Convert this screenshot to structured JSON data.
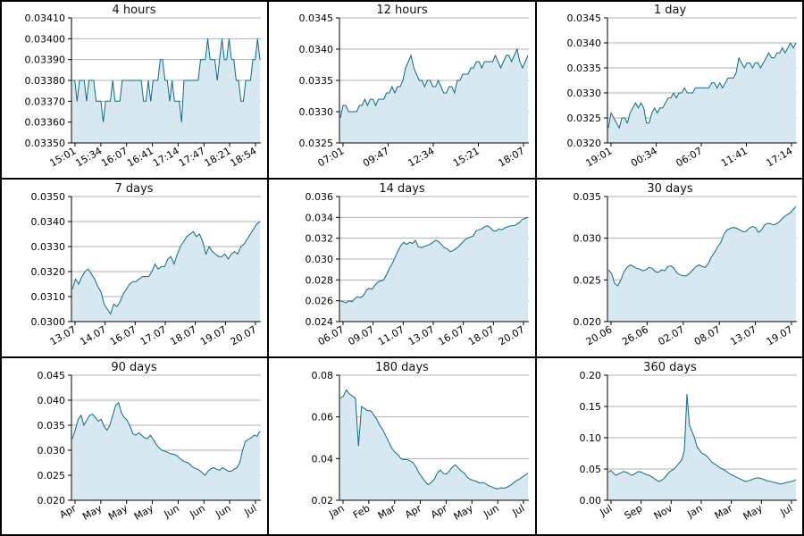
{
  "colors": {
    "line": "#0b6b8a",
    "fill": "#d7e8f0",
    "grid": "#b0b0b0",
    "border": "#000000"
  },
  "chart_data": [
    {
      "type": "area",
      "title": "4 hours",
      "yticks": [
        "0.03350",
        "0.03360",
        "0.03370",
        "0.03380",
        "0.03390",
        "0.03400",
        "0.03410"
      ],
      "ylim": [
        0.0335,
        0.0341
      ],
      "xticks": [
        "15:01",
        "15:34",
        "16:07",
        "16:41",
        "17:14",
        "17:47",
        "18:21",
        "18:54"
      ],
      "y": [
        0.0338,
        0.0338,
        0.0337,
        0.0338,
        0.0338,
        0.0338,
        0.0337,
        0.0338,
        0.0338,
        0.0338,
        0.0337,
        0.0337,
        0.0337,
        0.0336,
        0.0337,
        0.0337,
        0.0337,
        0.0338,
        0.0337,
        0.0337,
        0.0337,
        0.0338,
        0.0338,
        0.0338,
        0.0338,
        0.0338,
        0.0338,
        0.0338,
        0.0338,
        0.0338,
        0.0337,
        0.0337,
        0.0338,
        0.0337,
        0.0338,
        0.0338,
        0.0338,
        0.0339,
        0.0339,
        0.0338,
        0.0338,
        0.0337,
        0.0338,
        0.0337,
        0.0337,
        0.0337,
        0.0336,
        0.0338,
        0.0338,
        0.0338,
        0.0338,
        0.0338,
        0.0338,
        0.0338,
        0.0339,
        0.0339,
        0.0339,
        0.034,
        0.0339,
        0.0339,
        0.0339,
        0.0338,
        0.0339,
        0.034,
        0.0339,
        0.0339,
        0.034,
        0.0339,
        0.0339,
        0.0338,
        0.0338,
        0.0337,
        0.0337,
        0.0338,
        0.0338,
        0.0338,
        0.0339,
        0.0339,
        0.034,
        0.0339
      ]
    },
    {
      "type": "area",
      "title": "12 hours",
      "yticks": [
        "0.0325",
        "0.0330",
        "0.0335",
        "0.0340",
        "0.0345"
      ],
      "ylim": [
        0.0325,
        0.0345
      ],
      "xticks": [
        "07:01",
        "09:47",
        "12:34",
        "15:21",
        "18:07"
      ],
      "y": [
        0.0329,
        0.0331,
        0.0331,
        0.033,
        0.033,
        0.033,
        0.033,
        0.0331,
        0.0331,
        0.0332,
        0.0331,
        0.0332,
        0.0332,
        0.0331,
        0.0332,
        0.0332,
        0.0332,
        0.0333,
        0.0333,
        0.0334,
        0.0333,
        0.0334,
        0.0334,
        0.0335,
        0.0337,
        0.0338,
        0.0339,
        0.0337,
        0.0336,
        0.0335,
        0.0335,
        0.0334,
        0.0335,
        0.0335,
        0.0334,
        0.0334,
        0.0335,
        0.0334,
        0.0333,
        0.0333,
        0.0334,
        0.0334,
        0.0333,
        0.0335,
        0.0335,
        0.0336,
        0.0336,
        0.0336,
        0.0337,
        0.0337,
        0.0338,
        0.0338,
        0.0337,
        0.0338,
        0.0338,
        0.0338,
        0.0338,
        0.0339,
        0.0338,
        0.0337,
        0.0338,
        0.0339,
        0.0339,
        0.0338,
        0.0339,
        0.034,
        0.0338,
        0.0337,
        0.0338,
        0.0339
      ]
    },
    {
      "type": "area",
      "title": "1 day",
      "yticks": [
        "0.0320",
        "0.0325",
        "0.0330",
        "0.0335",
        "0.0340",
        "0.0345"
      ],
      "ylim": [
        0.032,
        0.0345
      ],
      "xticks": [
        "19:01",
        "00:34",
        "06:07",
        "11:41",
        "17:14"
      ],
      "y": [
        0.0323,
        0.0326,
        0.0325,
        0.0324,
        0.0323,
        0.0325,
        0.0325,
        0.0324,
        0.0326,
        0.0327,
        0.0328,
        0.0327,
        0.0328,
        0.0327,
        0.0324,
        0.0324,
        0.0326,
        0.0327,
        0.0326,
        0.0327,
        0.0327,
        0.0328,
        0.0329,
        0.0329,
        0.033,
        0.0329,
        0.033,
        0.033,
        0.0331,
        0.033,
        0.033,
        0.033,
        0.0331,
        0.0331,
        0.0331,
        0.0331,
        0.0331,
        0.0331,
        0.0332,
        0.0332,
        0.0331,
        0.0332,
        0.0331,
        0.0332,
        0.0333,
        0.0333,
        0.0333,
        0.0334,
        0.0337,
        0.0336,
        0.0335,
        0.0336,
        0.0336,
        0.0335,
        0.0336,
        0.0336,
        0.0335,
        0.0336,
        0.0337,
        0.0338,
        0.0337,
        0.0337,
        0.0338,
        0.0338,
        0.0339,
        0.0338,
        0.0339,
        0.034,
        0.0339,
        0.034
      ]
    },
    {
      "type": "area",
      "title": "7 days",
      "yticks": [
        "0.0300",
        "0.0310",
        "0.0320",
        "0.0330",
        "0.0340",
        "0.0350"
      ],
      "ylim": [
        0.03,
        0.035
      ],
      "xticks": [
        "13.07",
        "14.07",
        "16.07",
        "17.07",
        "18.07",
        "19.07",
        "20.07"
      ],
      "y": [
        0.0313,
        0.0317,
        0.0315,
        0.0318,
        0.032,
        0.0321,
        0.0319,
        0.0317,
        0.0314,
        0.0312,
        0.0307,
        0.0305,
        0.0303,
        0.0307,
        0.0306,
        0.0308,
        0.0311,
        0.0313,
        0.0315,
        0.0316,
        0.0316,
        0.0317,
        0.0318,
        0.0318,
        0.0318,
        0.032,
        0.0323,
        0.0321,
        0.0322,
        0.0322,
        0.0325,
        0.0326,
        0.0323,
        0.0327,
        0.033,
        0.0332,
        0.0334,
        0.0335,
        0.0336,
        0.0334,
        0.0335,
        0.0332,
        0.0327,
        0.033,
        0.0328,
        0.0327,
        0.0326,
        0.0326,
        0.0327,
        0.0325,
        0.0327,
        0.0328,
        0.0327,
        0.033,
        0.0331,
        0.0333,
        0.0335,
        0.0337,
        0.0339,
        0.034
      ]
    },
    {
      "type": "area",
      "title": "14 days",
      "yticks": [
        "0.024",
        "0.026",
        "0.028",
        "0.030",
        "0.032",
        "0.034",
        "0.036"
      ],
      "ylim": [
        0.024,
        0.036
      ],
      "xticks": [
        "06.07",
        "09.07",
        "11.07",
        "13.07",
        "16.07",
        "18.07",
        "20.07"
      ],
      "y": [
        0.026,
        0.0259,
        0.0258,
        0.026,
        0.0259,
        0.0262,
        0.0264,
        0.0263,
        0.0265,
        0.027,
        0.0272,
        0.0271,
        0.0275,
        0.0278,
        0.0279,
        0.028,
        0.0285,
        0.0291,
        0.0296,
        0.0302,
        0.0308,
        0.0313,
        0.0316,
        0.0314,
        0.0316,
        0.0315,
        0.0318,
        0.0312,
        0.0311,
        0.0312,
        0.0313,
        0.0314,
        0.0316,
        0.0318,
        0.0317,
        0.0314,
        0.0311,
        0.031,
        0.0307,
        0.0308,
        0.031,
        0.0312,
        0.0315,
        0.0318,
        0.032,
        0.0321,
        0.0322,
        0.0327,
        0.0328,
        0.0329,
        0.0331,
        0.0332,
        0.033,
        0.0327,
        0.0327,
        0.0329,
        0.0328,
        0.033,
        0.0331,
        0.0332,
        0.0332,
        0.0333,
        0.0335,
        0.0338,
        0.0339,
        0.034
      ]
    },
    {
      "type": "area",
      "title": "30 days",
      "yticks": [
        "0.020",
        "0.025",
        "0.030",
        "0.035"
      ],
      "ylim": [
        0.02,
        0.035
      ],
      "xticks": [
        "20.06",
        "26.06",
        "02.07",
        "08.07",
        "13.07",
        "19.07"
      ],
      "y": [
        0.0262,
        0.0258,
        0.0246,
        0.0243,
        0.025,
        0.026,
        0.0265,
        0.0268,
        0.0266,
        0.0264,
        0.0263,
        0.0261,
        0.0262,
        0.0265,
        0.0264,
        0.026,
        0.0259,
        0.0262,
        0.0261,
        0.0266,
        0.0267,
        0.0264,
        0.0258,
        0.0256,
        0.0255,
        0.0255,
        0.0258,
        0.0262,
        0.0266,
        0.0268,
        0.0266,
        0.0265,
        0.027,
        0.0278,
        0.0283,
        0.029,
        0.0295,
        0.0305,
        0.031,
        0.0312,
        0.0313,
        0.0312,
        0.031,
        0.0308,
        0.0308,
        0.0312,
        0.0314,
        0.0313,
        0.0307,
        0.031,
        0.0316,
        0.0318,
        0.0317,
        0.0316,
        0.0318,
        0.0321,
        0.0325,
        0.0328,
        0.033,
        0.0334,
        0.0338
      ]
    },
    {
      "type": "area",
      "title": "90 days",
      "yticks": [
        "0.020",
        "0.025",
        "0.030",
        "0.035",
        "0.040",
        "0.045"
      ],
      "ylim": [
        0.02,
        0.045
      ],
      "xticks": [
        "Apr",
        "May",
        "May",
        "May",
        "Jun",
        "Jun",
        "Jun",
        "Jul"
      ],
      "y": [
        0.0323,
        0.034,
        0.0362,
        0.037,
        0.035,
        0.036,
        0.037,
        0.0372,
        0.0365,
        0.0358,
        0.0362,
        0.0348,
        0.034,
        0.035,
        0.037,
        0.039,
        0.0395,
        0.0375,
        0.0365,
        0.036,
        0.0348,
        0.0333,
        0.033,
        0.0335,
        0.033,
        0.0325,
        0.0323,
        0.033,
        0.0322,
        0.0312,
        0.0305,
        0.03,
        0.0298,
        0.0296,
        0.0293,
        0.0292,
        0.029,
        0.0285,
        0.028,
        0.0277,
        0.0275,
        0.027,
        0.0265,
        0.0263,
        0.026,
        0.0255,
        0.025,
        0.0258,
        0.0263,
        0.0265,
        0.0262,
        0.026,
        0.0265,
        0.0262,
        0.0258,
        0.0258,
        0.0262,
        0.0265,
        0.0275,
        0.03,
        0.0318,
        0.0322,
        0.0325,
        0.033,
        0.0328,
        0.0338
      ]
    },
    {
      "type": "area",
      "title": "180 days",
      "yticks": [
        "0.02",
        "0.04",
        "0.06",
        "0.08"
      ],
      "ylim": [
        0.02,
        0.08
      ],
      "xticks": [
        "Jan",
        "Feb",
        "Mar",
        "Apr",
        "Apr",
        "May",
        "Jun",
        "Jul"
      ],
      "y": [
        0.069,
        0.07,
        0.073,
        0.071,
        0.07,
        0.069,
        0.046,
        0.065,
        0.064,
        0.063,
        0.063,
        0.061,
        0.059,
        0.056,
        0.054,
        0.051,
        0.048,
        0.045,
        0.043,
        0.042,
        0.04,
        0.0395,
        0.0395,
        0.039,
        0.038,
        0.036,
        0.033,
        0.031,
        0.029,
        0.0275,
        0.0285,
        0.03,
        0.033,
        0.0345,
        0.033,
        0.0325,
        0.034,
        0.036,
        0.037,
        0.0355,
        0.034,
        0.033,
        0.031,
        0.03,
        0.0295,
        0.029,
        0.0283,
        0.0285,
        0.028,
        0.027,
        0.0265,
        0.0258,
        0.0255,
        0.026,
        0.0258,
        0.0262,
        0.027,
        0.028,
        0.0293,
        0.03,
        0.031,
        0.032,
        0.033
      ]
    },
    {
      "type": "area",
      "title": "360 days",
      "yticks": [
        "0.00",
        "0.05",
        "0.10",
        "0.15",
        "0.20"
      ],
      "ylim": [
        0.0,
        0.2
      ],
      "xticks": [
        "Jul",
        "Sep",
        "Nov",
        "Jan",
        "Mar",
        "May",
        "Jul"
      ],
      "y": [
        0.045,
        0.048,
        0.043,
        0.04,
        0.042,
        0.044,
        0.046,
        0.045,
        0.043,
        0.04,
        0.041,
        0.044,
        0.046,
        0.045,
        0.043,
        0.041,
        0.04,
        0.038,
        0.035,
        0.032,
        0.03,
        0.032,
        0.035,
        0.04,
        0.045,
        0.048,
        0.05,
        0.055,
        0.06,
        0.065,
        0.08,
        0.17,
        0.12,
        0.11,
        0.1,
        0.085,
        0.08,
        0.075,
        0.073,
        0.07,
        0.065,
        0.06,
        0.058,
        0.055,
        0.052,
        0.05,
        0.048,
        0.045,
        0.042,
        0.04,
        0.038,
        0.036,
        0.034,
        0.032,
        0.03,
        0.031,
        0.032,
        0.034,
        0.035,
        0.036,
        0.035,
        0.034,
        0.032,
        0.031,
        0.03,
        0.029,
        0.028,
        0.027,
        0.026,
        0.027,
        0.028,
        0.029,
        0.03,
        0.031,
        0.033
      ]
    }
  ]
}
